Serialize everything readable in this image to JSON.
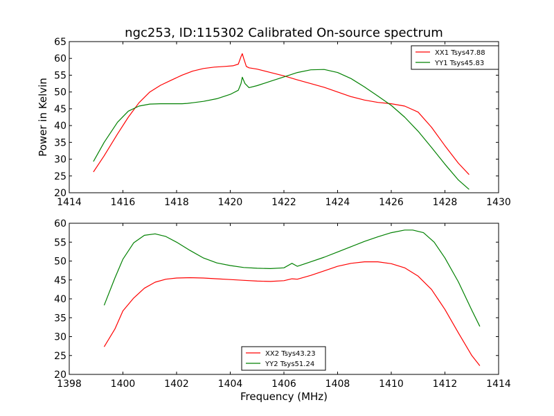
{
  "title": "ngc253, ID:115302 Calibrated On-source spectrum",
  "chart_data": [
    {
      "type": "line",
      "title": "ngc253, ID:115302 Calibrated On-source spectrum",
      "xlabel": "",
      "ylabel": "Power in Kelvin",
      "xlim": [
        1414,
        1430
      ],
      "ylim": [
        20,
        65
      ],
      "xticks": [
        1414,
        1416,
        1418,
        1420,
        1422,
        1424,
        1426,
        1428,
        1430
      ],
      "yticks": [
        20,
        25,
        30,
        35,
        40,
        45,
        50,
        55,
        60,
        65
      ],
      "grid": false,
      "legend_position": "upper-right",
      "series": [
        {
          "name": "XX1 Tsys47.88",
          "color": "#ff0000",
          "x": [
            1414.9,
            1415.3,
            1415.8,
            1416.2,
            1416.6,
            1417.0,
            1417.4,
            1417.8,
            1418.2,
            1418.6,
            1419.0,
            1419.4,
            1419.8,
            1420.1,
            1420.3,
            1420.4,
            1420.45,
            1420.5,
            1420.6,
            1420.7,
            1421.0,
            1421.5,
            1422.0,
            1422.5,
            1423.0,
            1423.5,
            1424.0,
            1424.5,
            1425.0,
            1425.5,
            1426.0,
            1426.5,
            1427.0,
            1427.5,
            1428.0,
            1428.5,
            1428.9
          ],
          "values": [
            26.2,
            31.0,
            37.5,
            42.5,
            46.8,
            50.0,
            52.0,
            53.5,
            55.0,
            56.2,
            57.0,
            57.4,
            57.6,
            57.8,
            58.3,
            60.5,
            61.4,
            60.0,
            57.6,
            57.2,
            56.8,
            55.8,
            54.8,
            53.6,
            52.5,
            51.4,
            50.0,
            48.6,
            47.6,
            46.9,
            46.5,
            45.8,
            44.0,
            39.5,
            34.0,
            28.8,
            25.4
          ]
        },
        {
          "name": "YY1 Tsys45.83",
          "color": "#008000",
          "x": [
            1414.9,
            1415.3,
            1415.8,
            1416.2,
            1416.6,
            1417.0,
            1417.4,
            1417.8,
            1418.2,
            1418.4,
            1418.6,
            1419.0,
            1419.5,
            1420.0,
            1420.3,
            1420.4,
            1420.45,
            1420.55,
            1420.7,
            1421.0,
            1421.5,
            1422.0,
            1422.5,
            1423.0,
            1423.5,
            1424.0,
            1424.5,
            1425.0,
            1425.5,
            1426.0,
            1426.5,
            1427.0,
            1427.5,
            1428.0,
            1428.5,
            1428.9
          ],
          "values": [
            29.3,
            35.0,
            41.0,
            44.3,
            45.8,
            46.4,
            46.5,
            46.5,
            46.5,
            46.6,
            46.8,
            47.2,
            48.0,
            49.3,
            50.5,
            52.5,
            54.4,
            52.5,
            51.3,
            51.9,
            53.2,
            54.5,
            55.8,
            56.6,
            56.7,
            55.8,
            54.0,
            51.5,
            48.8,
            46.0,
            42.5,
            38.3,
            33.5,
            28.5,
            23.8,
            21.0
          ]
        }
      ]
    },
    {
      "type": "line",
      "title": "",
      "xlabel": "Frequency (MHz)",
      "ylabel": "",
      "xlim": [
        1398,
        1414
      ],
      "ylim": [
        20,
        60
      ],
      "xticks": [
        1398,
        1400,
        1402,
        1404,
        1406,
        1408,
        1410,
        1412,
        1414
      ],
      "yticks": [
        20,
        25,
        30,
        35,
        40,
        45,
        50,
        55,
        60
      ],
      "grid": false,
      "legend_position": "lower-center",
      "series": [
        {
          "name": "XX2 Tsys43.23",
          "color": "#ff0000",
          "x": [
            1399.3,
            1399.7,
            1400.0,
            1400.4,
            1400.8,
            1401.2,
            1401.6,
            1402.0,
            1402.5,
            1403.0,
            1403.5,
            1404.0,
            1404.5,
            1405.0,
            1405.5,
            1406.0,
            1406.3,
            1406.5,
            1407.0,
            1407.5,
            1408.0,
            1408.5,
            1409.0,
            1409.5,
            1410.0,
            1410.5,
            1411.0,
            1411.5,
            1412.0,
            1412.5,
            1413.0,
            1413.3
          ],
          "values": [
            27.3,
            32.0,
            36.8,
            40.2,
            42.8,
            44.4,
            45.2,
            45.5,
            45.6,
            45.5,
            45.3,
            45.1,
            44.9,
            44.7,
            44.6,
            44.8,
            45.3,
            45.2,
            46.2,
            47.4,
            48.6,
            49.4,
            49.8,
            49.8,
            49.3,
            48.2,
            46.0,
            42.5,
            37.2,
            31.0,
            25.0,
            22.3
          ]
        },
        {
          "name": "YY2 Tsys51.24",
          "color": "#008000",
          "x": [
            1399.3,
            1399.7,
            1400.0,
            1400.4,
            1400.8,
            1401.2,
            1401.6,
            1402.0,
            1402.5,
            1403.0,
            1403.5,
            1404.0,
            1404.5,
            1405.0,
            1405.5,
            1406.0,
            1406.3,
            1406.5,
            1407.0,
            1407.5,
            1408.0,
            1408.5,
            1409.0,
            1409.5,
            1410.0,
            1410.5,
            1410.8,
            1411.2,
            1411.6,
            1412.0,
            1412.5,
            1413.0,
            1413.3
          ],
          "values": [
            38.3,
            45.5,
            50.5,
            54.8,
            56.8,
            57.2,
            56.5,
            55.0,
            52.8,
            50.8,
            49.5,
            48.8,
            48.3,
            48.1,
            48.0,
            48.2,
            49.4,
            48.6,
            49.8,
            51.0,
            52.4,
            53.8,
            55.2,
            56.4,
            57.5,
            58.2,
            58.2,
            57.5,
            55.0,
            50.8,
            44.5,
            37.0,
            32.7
          ]
        }
      ]
    }
  ]
}
